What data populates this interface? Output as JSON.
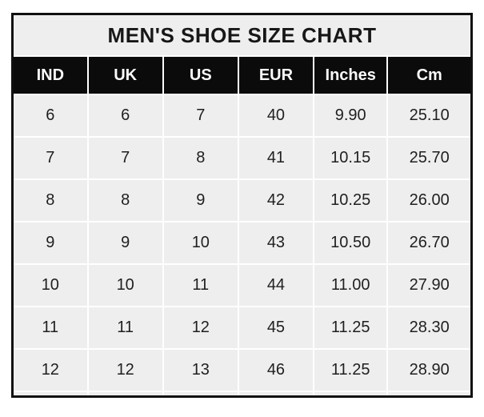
{
  "page": {
    "background_color": "#ffffff"
  },
  "table_style": {
    "outer_border_color": "#101010",
    "header_bg_color": "#0b0b0b",
    "header_text_color": "#fafafa",
    "cell_bg_color": "#efeeee",
    "grid_gap_color": "#ffffff",
    "body_text_color": "#1f1f1f"
  },
  "chart_data": {
    "type": "table",
    "title": "MEN'S SHOE SIZE CHART",
    "columns": [
      "IND",
      "UK",
      "US",
      "EUR",
      "Inches",
      "Cm"
    ],
    "rows": [
      [
        "6",
        "6",
        "7",
        "40",
        "9.90",
        "25.10"
      ],
      [
        "7",
        "7",
        "8",
        "41",
        "10.15",
        "25.70"
      ],
      [
        "8",
        "8",
        "9",
        "42",
        "10.25",
        "26.00"
      ],
      [
        "9",
        "9",
        "10",
        "43",
        "10.50",
        "26.70"
      ],
      [
        "10",
        "10",
        "11",
        "44",
        "11.00",
        "27.90"
      ],
      [
        "11",
        "11",
        "12",
        "45",
        "11.25",
        "28.30"
      ],
      [
        "12",
        "12",
        "13",
        "46",
        "11.25",
        "28.90"
      ]
    ]
  }
}
